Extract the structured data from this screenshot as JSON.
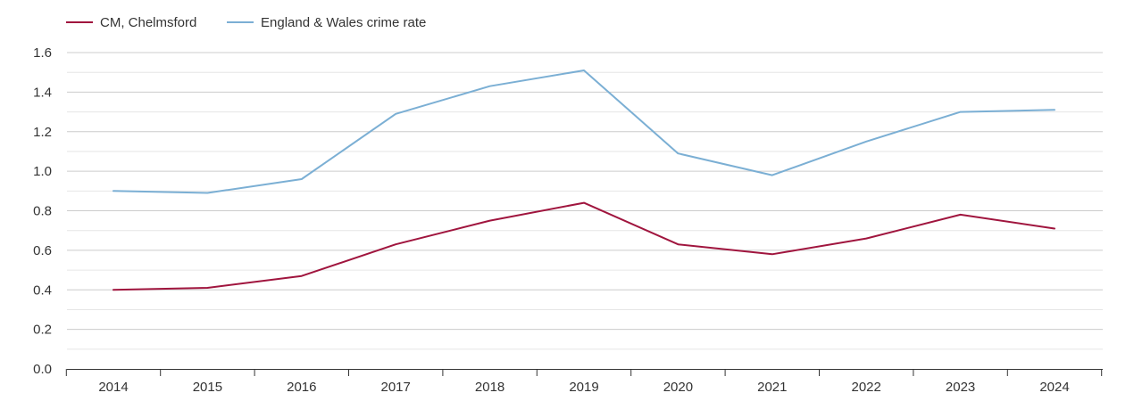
{
  "chart_data": {
    "type": "line",
    "title": "",
    "xlabel": "",
    "ylabel": "",
    "x": [
      "2014",
      "2015",
      "2016",
      "2017",
      "2018",
      "2019",
      "2020",
      "2021",
      "2022",
      "2023",
      "2024"
    ],
    "ylim": [
      0,
      1.6
    ],
    "yticks": [
      "0.0",
      "0.2",
      "0.4",
      "0.6",
      "0.8",
      "1.0",
      "1.2",
      "1.4",
      "1.6"
    ],
    "grid": true,
    "legend_position": "top-left",
    "series": [
      {
        "name": "CM, Chelmsford",
        "color": "#a0153e",
        "values": [
          0.4,
          0.41,
          0.47,
          0.63,
          0.75,
          0.84,
          0.63,
          0.58,
          0.66,
          0.78,
          0.71
        ]
      },
      {
        "name": "England & Wales crime rate",
        "color": "#7bafd4",
        "values": [
          0.9,
          0.89,
          0.96,
          1.29,
          1.43,
          1.51,
          1.09,
          0.98,
          1.15,
          1.3,
          1.31
        ]
      }
    ]
  }
}
